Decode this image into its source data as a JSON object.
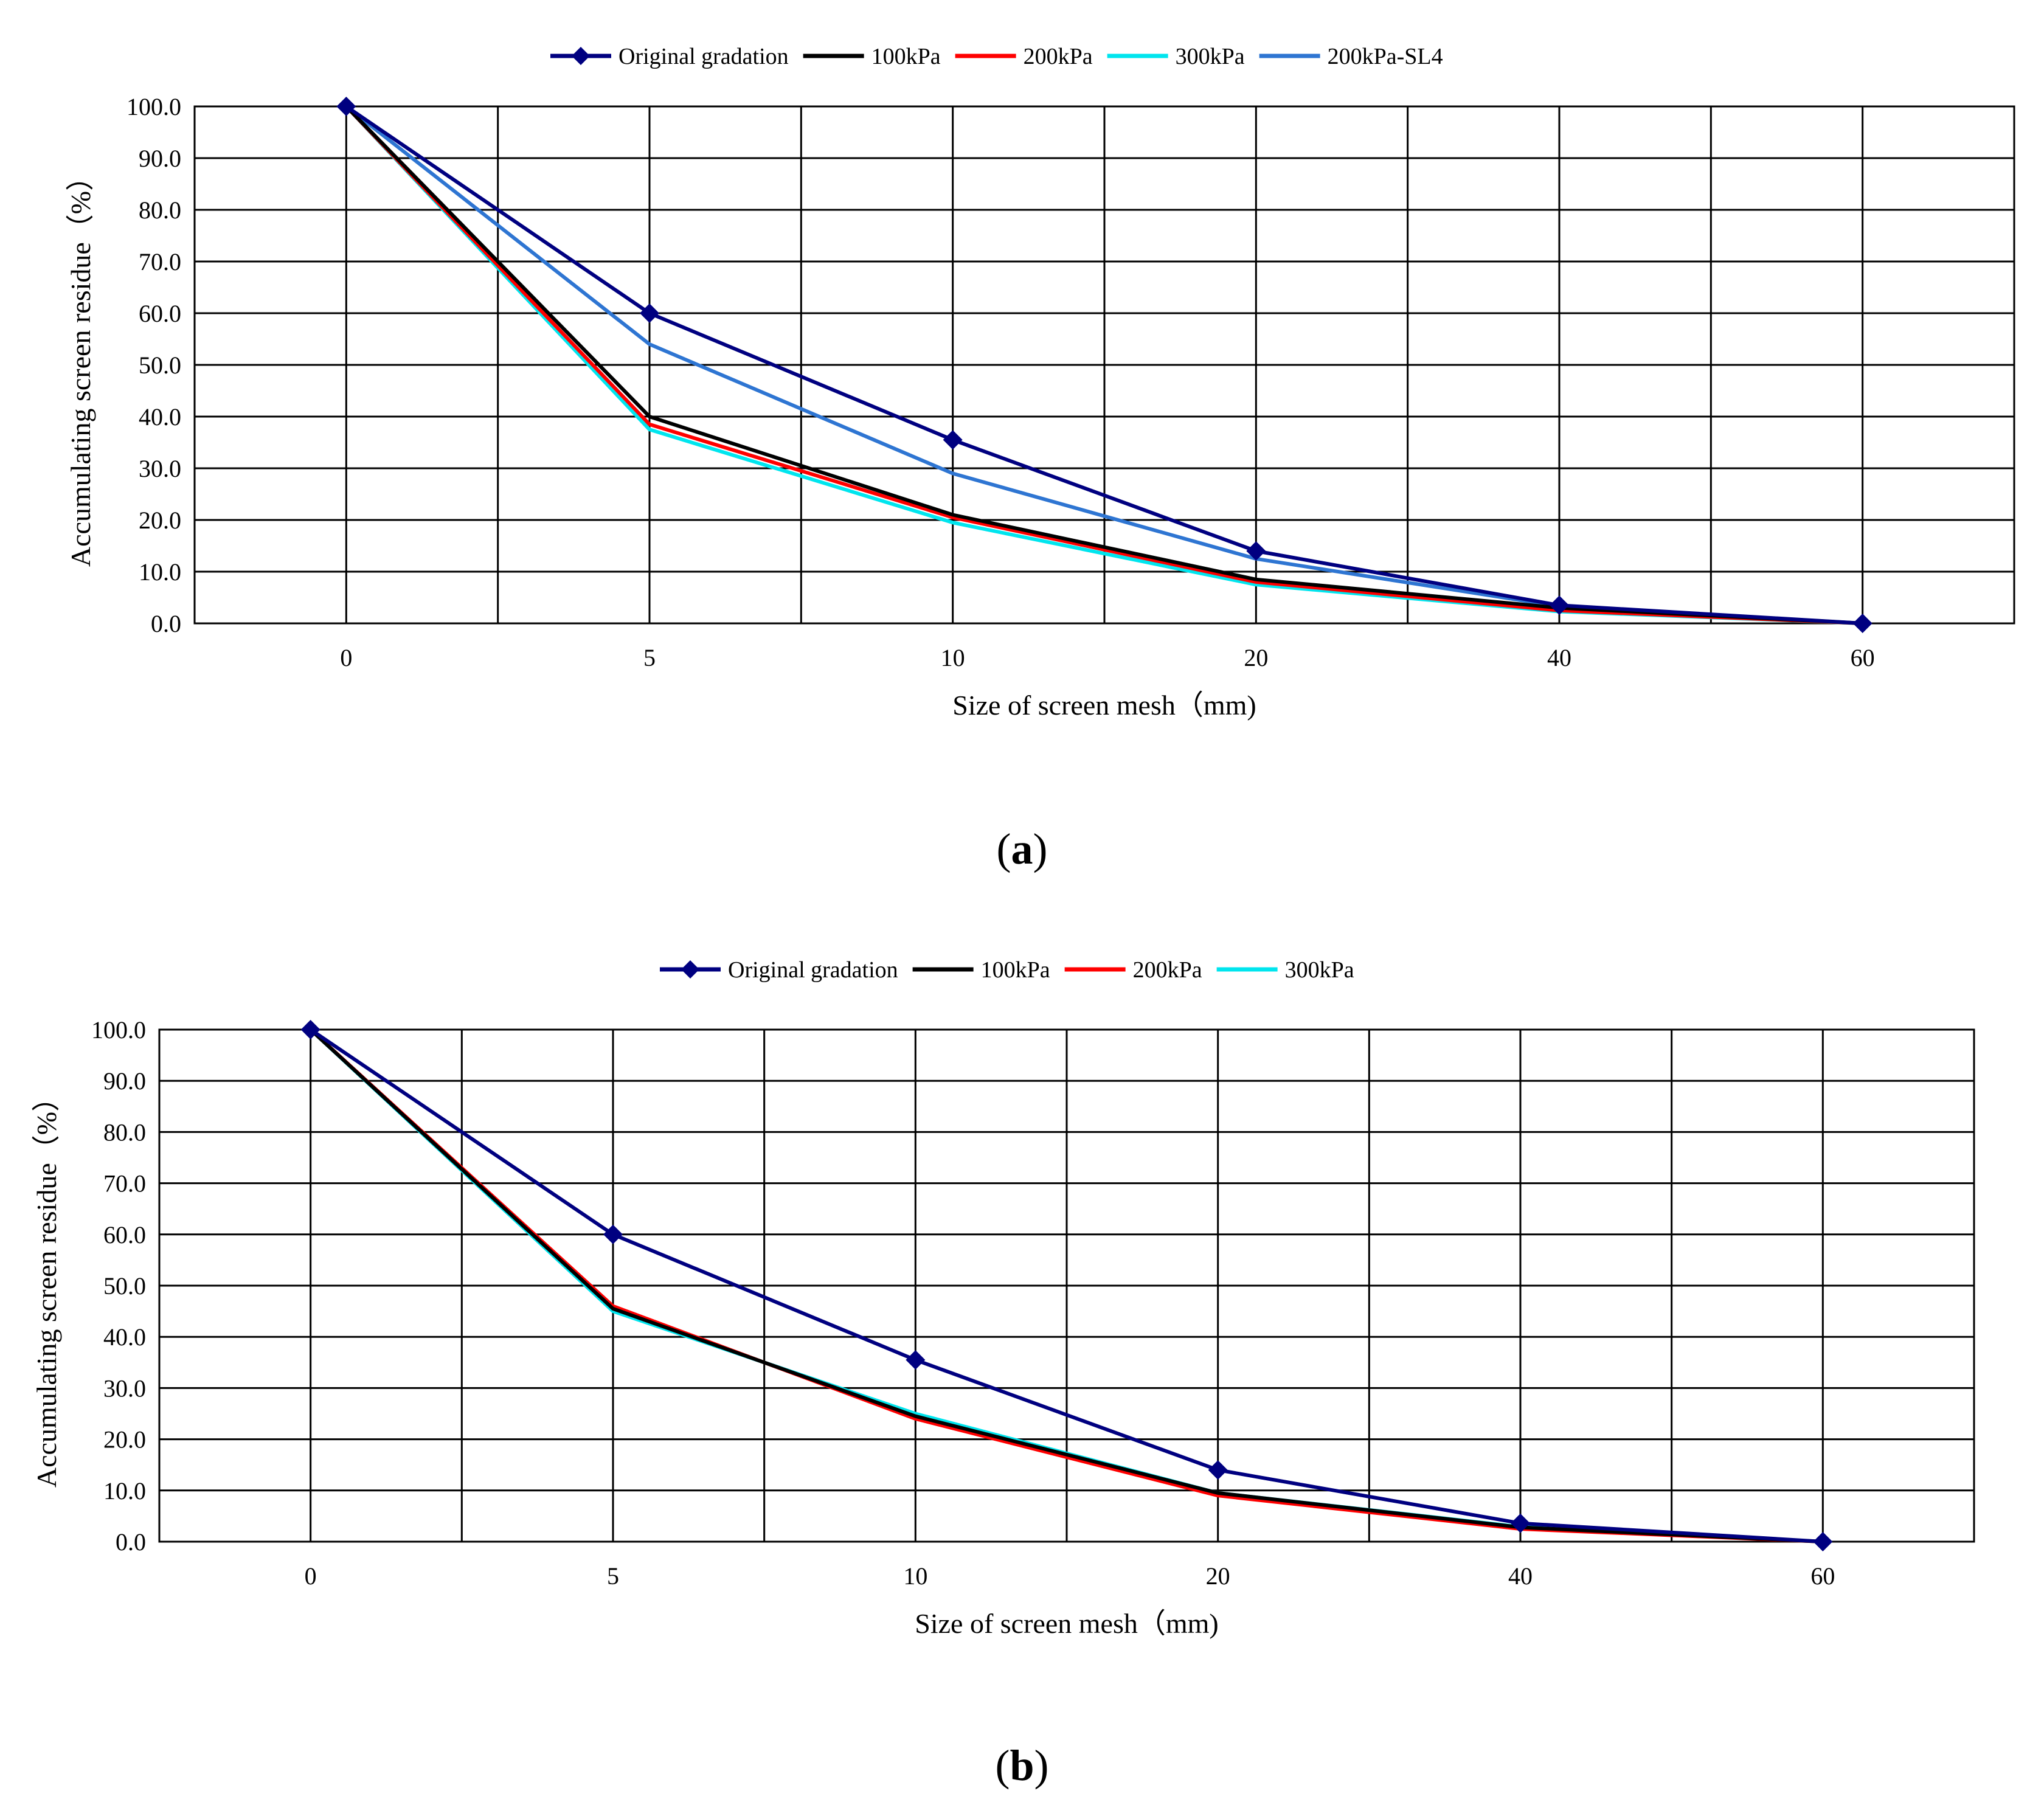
{
  "chart_data": [
    {
      "type": "line",
      "panel_label": "a",
      "categories": [
        "0",
        "5",
        "10",
        "20",
        "40",
        "60"
      ],
      "xlabel": "Size of screen mesh（mm)",
      "ylabel": "Accumulating screen residue（%）",
      "ylim": [
        0,
        100
      ],
      "yticks": [
        "0.0",
        "10.0",
        "20.0",
        "30.0",
        "40.0",
        "50.0",
        "60.0",
        "70.0",
        "80.0",
        "90.0",
        "100.0"
      ],
      "grid": true,
      "legend_position": "top-center",
      "series": [
        {
          "name": "Original gradation",
          "color": "#000080",
          "marker": "diamond",
          "values": [
            100,
            60,
            35.5,
            14,
            3.5,
            0
          ]
        },
        {
          "name": "100kPa",
          "color": "#000000",
          "marker": "none",
          "values": [
            100,
            40,
            21,
            8.5,
            3,
            0
          ]
        },
        {
          "name": "200kPa",
          "color": "#ff0000",
          "marker": "none",
          "values": [
            100,
            38.5,
            20.5,
            8,
            2.5,
            0
          ]
        },
        {
          "name": "300kPa",
          "color": "#00e5ee",
          "marker": "none",
          "values": [
            100,
            37.5,
            19.5,
            7.5,
            2.3,
            0
          ]
        },
        {
          "name": "200kPa-SL4",
          "color": "#2e75d2",
          "marker": "none",
          "values": [
            100,
            54,
            29,
            12.5,
            3.3,
            0
          ]
        }
      ]
    },
    {
      "type": "line",
      "panel_label": "b",
      "categories": [
        "0",
        "5",
        "10",
        "20",
        "40",
        "60"
      ],
      "xlabel": "Size of screen mesh（mm)",
      "ylabel": "Accumulating screen residue（%）",
      "ylim": [
        0,
        100
      ],
      "yticks": [
        "0.0",
        "10.0",
        "20.0",
        "30.0",
        "40.0",
        "50.0",
        "60.0",
        "70.0",
        "80.0",
        "90.0",
        "100.0"
      ],
      "grid": true,
      "legend_position": "top-center",
      "series": [
        {
          "name": "Original gradation",
          "color": "#000080",
          "marker": "diamond",
          "values": [
            100,
            60,
            35.5,
            14,
            3.6,
            0
          ]
        },
        {
          "name": "100kPa",
          "color": "#000000",
          "marker": "none",
          "values": [
            100,
            45.5,
            24.5,
            9.5,
            2.8,
            0
          ]
        },
        {
          "name": "200kPa",
          "color": "#ff0000",
          "marker": "none",
          "values": [
            100,
            46,
            24,
            9,
            2.5,
            0
          ]
        },
        {
          "name": "300kPa",
          "color": "#00e5ee",
          "marker": "none",
          "values": [
            100,
            45,
            25,
            9.5,
            2.9,
            0
          ]
        }
      ]
    }
  ]
}
